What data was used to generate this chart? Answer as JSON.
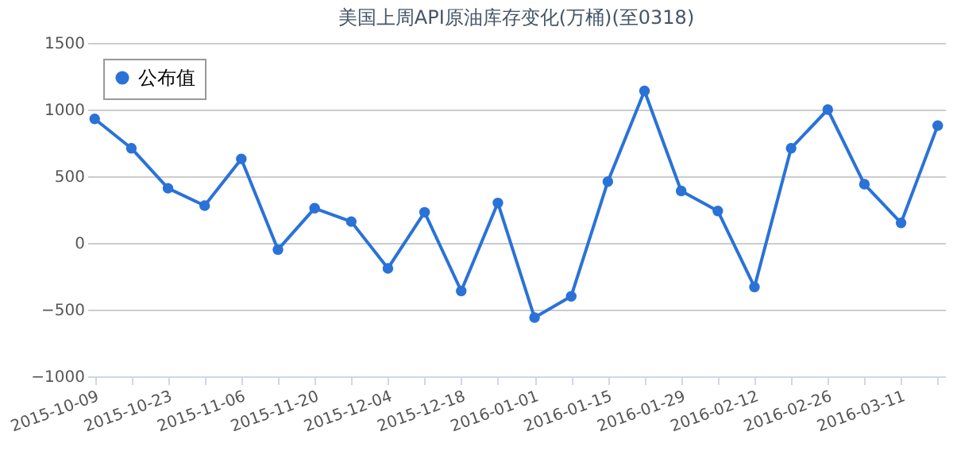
{
  "chart_data": {
    "type": "line",
    "title": "美国上周API原油库存变化(万桶)(至0318)",
    "categories": [
      "2015-10-09",
      null,
      "2015-10-23",
      null,
      "2015-11-06",
      null,
      "2015-11-20",
      null,
      "2015-12-04",
      null,
      "2015-12-18",
      null,
      "2016-01-01",
      null,
      "2016-01-15",
      null,
      "2016-01-29",
      null,
      "2016-02-12",
      null,
      "2016-02-26",
      null,
      "2016-03-11",
      null
    ],
    "series": [
      {
        "name": "公布值",
        "color": "#2a72d8",
        "values": [
          930,
          710,
          410,
          280,
          630,
          -50,
          260,
          160,
          -190,
          230,
          -360,
          300,
          -560,
          -400,
          460,
          1140,
          390,
          240,
          -330,
          710,
          1000,
          440,
          150,
          880
        ]
      }
    ],
    "ylim": [
      -1000,
      1500
    ],
    "yticks": [
      -1000,
      -500,
      0,
      500,
      1000,
      1500
    ],
    "grid": "y",
    "legend": "top left",
    "marker": "circle",
    "line_style": "solid"
  }
}
